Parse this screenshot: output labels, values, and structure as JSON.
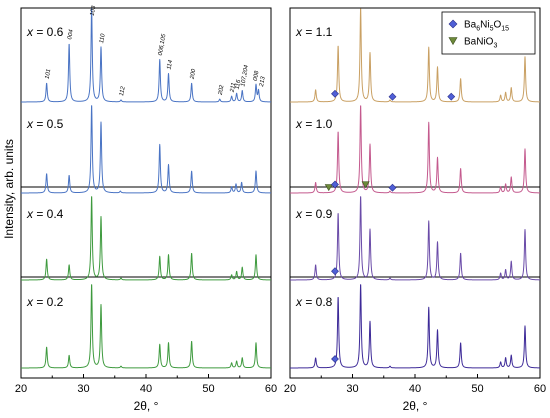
{
  "chart_data": {
    "type": "line",
    "ylabel": "Intensity, arb. units",
    "panels": [
      {
        "id": "left",
        "xlabel": "2θ, °",
        "xlim": [
          20,
          60
        ],
        "xticks": [
          20,
          30,
          40,
          50,
          60
        ],
        "series": [
          {
            "name": "x = 0.6",
            "color": "#4a74c4",
            "peaks": [
              [
                24.1,
                0.2
              ],
              [
                27.7,
                0.62
              ],
              [
                31.3,
                1.0
              ],
              [
                32.8,
                0.58
              ],
              [
                36.0,
                0.02
              ],
              [
                42.2,
                0.45
              ],
              [
                43.6,
                0.3
              ],
              [
                47.3,
                0.2
              ],
              [
                51.8,
                0.03
              ],
              [
                53.7,
                0.06
              ],
              [
                54.5,
                0.09
              ],
              [
                55.4,
                0.12
              ],
              [
                57.6,
                0.18
              ],
              [
                58.0,
                0.12
              ]
            ]
          },
          {
            "name": "x = 0.5",
            "color": "#4a74c4",
            "peaks": [
              [
                24.1,
                0.22
              ],
              [
                27.7,
                0.2
              ],
              [
                31.3,
                1.0
              ],
              [
                32.8,
                0.8
              ],
              [
                35.9,
                0.02
              ],
              [
                42.2,
                0.55
              ],
              [
                43.6,
                0.32
              ],
              [
                47.3,
                0.25
              ],
              [
                53.7,
                0.07
              ],
              [
                54.4,
                0.1
              ],
              [
                55.3,
                0.12
              ],
              [
                57.6,
                0.25
              ]
            ]
          },
          {
            "name": "x = 0.4",
            "color": "#3e9a3e",
            "peaks": [
              [
                24.1,
                0.25
              ],
              [
                27.7,
                0.18
              ],
              [
                31.3,
                1.0
              ],
              [
                32.8,
                0.75
              ],
              [
                36.0,
                0.02
              ],
              [
                42.2,
                0.28
              ],
              [
                43.6,
                0.3
              ],
              [
                47.3,
                0.32
              ],
              [
                53.7,
                0.06
              ],
              [
                54.5,
                0.1
              ],
              [
                55.4,
                0.15
              ],
              [
                57.6,
                0.3
              ]
            ]
          },
          {
            "name": "x = 0.2",
            "color": "#3e9a3e",
            "peaks": [
              [
                24.1,
                0.25
              ],
              [
                27.7,
                0.15
              ],
              [
                31.3,
                1.0
              ],
              [
                32.8,
                0.75
              ],
              [
                36.0,
                0.02
              ],
              [
                42.2,
                0.28
              ],
              [
                43.6,
                0.3
              ],
              [
                47.3,
                0.32
              ],
              [
                53.7,
                0.06
              ],
              [
                54.5,
                0.08
              ],
              [
                55.4,
                0.12
              ],
              [
                57.6,
                0.3
              ]
            ]
          }
        ],
        "compositions": [
          "x = 0.6",
          "x = 0.5",
          "x = 0.4",
          "x = 0.2"
        ],
        "hkl_labels": [
          {
            "text": "101",
            "x": 24.1
          },
          {
            "text": "004",
            "x": 27.7
          },
          {
            "text": "103",
            "x": 31.3
          },
          {
            "text": "110",
            "x": 32.8
          },
          {
            "text": "112",
            "x": 36.0
          },
          {
            "text": "006,105",
            "x": 42.2
          },
          {
            "text": "114",
            "x": 43.6
          },
          {
            "text": "200",
            "x": 47.3
          },
          {
            "text": "202",
            "x": 51.8
          },
          {
            "text": "211",
            "x": 53.7
          },
          {
            "text": "116",
            "x": 54.5
          },
          {
            "text": "107,204",
            "x": 55.4
          },
          {
            "text": "008",
            "x": 57.4
          },
          {
            "text": "213",
            "x": 58.4
          }
        ]
      },
      {
        "id": "right",
        "xlabel": "2θ, °",
        "xlim": [
          20,
          60
        ],
        "xticks": [
          20,
          30,
          40,
          50,
          60
        ],
        "series": [
          {
            "name": "x = 1.1",
            "color": "#c9a063",
            "peaks": [
              [
                24.1,
                0.13
              ],
              [
                27.7,
                0.6
              ],
              [
                31.3,
                1.0
              ],
              [
                32.8,
                0.52
              ],
              [
                36.0,
                0.02
              ],
              [
                42.2,
                0.58
              ],
              [
                43.6,
                0.37
              ],
              [
                47.3,
                0.25
              ],
              [
                53.7,
                0.07
              ],
              [
                54.5,
                0.1
              ],
              [
                55.4,
                0.15
              ],
              [
                57.6,
                0.48
              ]
            ]
          },
          {
            "name": "x = 1.0",
            "color": "#c45a8e",
            "peaks": [
              [
                24.1,
                0.12
              ],
              [
                27.7,
                0.7
              ],
              [
                31.3,
                1.0
              ],
              [
                32.8,
                0.55
              ],
              [
                36.0,
                0.02
              ],
              [
                42.2,
                0.8
              ],
              [
                43.6,
                0.4
              ],
              [
                47.3,
                0.28
              ],
              [
                53.7,
                0.07
              ],
              [
                54.5,
                0.1
              ],
              [
                55.4,
                0.18
              ],
              [
                57.6,
                0.5
              ]
            ]
          },
          {
            "name": "x = 0.9",
            "color": "#6a4ba8",
            "peaks": [
              [
                24.1,
                0.18
              ],
              [
                27.7,
                0.8
              ],
              [
                31.3,
                1.0
              ],
              [
                32.8,
                0.6
              ],
              [
                36.0,
                0.02
              ],
              [
                42.2,
                0.7
              ],
              [
                43.6,
                0.45
              ],
              [
                47.3,
                0.32
              ],
              [
                53.7,
                0.08
              ],
              [
                54.5,
                0.12
              ],
              [
                55.4,
                0.22
              ],
              [
                57.6,
                0.6
              ]
            ]
          },
          {
            "name": "x = 0.8",
            "color": "#3d2a98",
            "peaks": [
              [
                24.1,
                0.12
              ],
              [
                27.7,
                0.85
              ],
              [
                31.3,
                1.0
              ],
              [
                32.8,
                0.55
              ],
              [
                36.0,
                0.02
              ],
              [
                42.2,
                0.72
              ],
              [
                43.6,
                0.45
              ],
              [
                47.3,
                0.3
              ],
              [
                53.7,
                0.07
              ],
              [
                54.5,
                0.12
              ],
              [
                55.4,
                0.15
              ],
              [
                57.6,
                0.5
              ]
            ]
          }
        ],
        "compositions": [
          "x = 1.1",
          "x = 1.0",
          "x = 0.9",
          "x = 0.8"
        ],
        "legend": {
          "position": "top-right",
          "entries": [
            {
              "label_main": "Ba",
              "sub1": "6",
              "mid": "Ni",
              "sub2": "5",
              "end": "O",
              "sub3": "15",
              "marker": "diamond",
              "color": "#4f5fd6"
            },
            {
              "label_main": "BaNiO",
              "sub1": "3",
              "mid": "",
              "sub2": "",
              "end": "",
              "sub3": "",
              "marker": "triangle-down",
              "color": "#6d8a3a"
            }
          ]
        },
        "phase_markers": [
          {
            "series": "x = 1.1",
            "type": "diamond",
            "x": 27.2
          },
          {
            "series": "x = 1.1",
            "type": "diamond",
            "x": 36.4
          },
          {
            "series": "x = 1.1",
            "type": "diamond",
            "x": 45.8
          },
          {
            "series": "x = 1.0",
            "type": "triangle-down",
            "x": 26.2
          },
          {
            "series": "x = 1.0",
            "type": "diamond",
            "x": 27.2
          },
          {
            "series": "x = 1.0",
            "type": "triangle-down",
            "x": 32.1
          },
          {
            "series": "x = 1.0",
            "type": "diamond",
            "x": 36.4
          },
          {
            "series": "x = 0.9",
            "type": "diamond",
            "x": 27.2
          },
          {
            "series": "x = 0.8",
            "type": "diamond",
            "x": 27.2
          }
        ]
      }
    ]
  }
}
